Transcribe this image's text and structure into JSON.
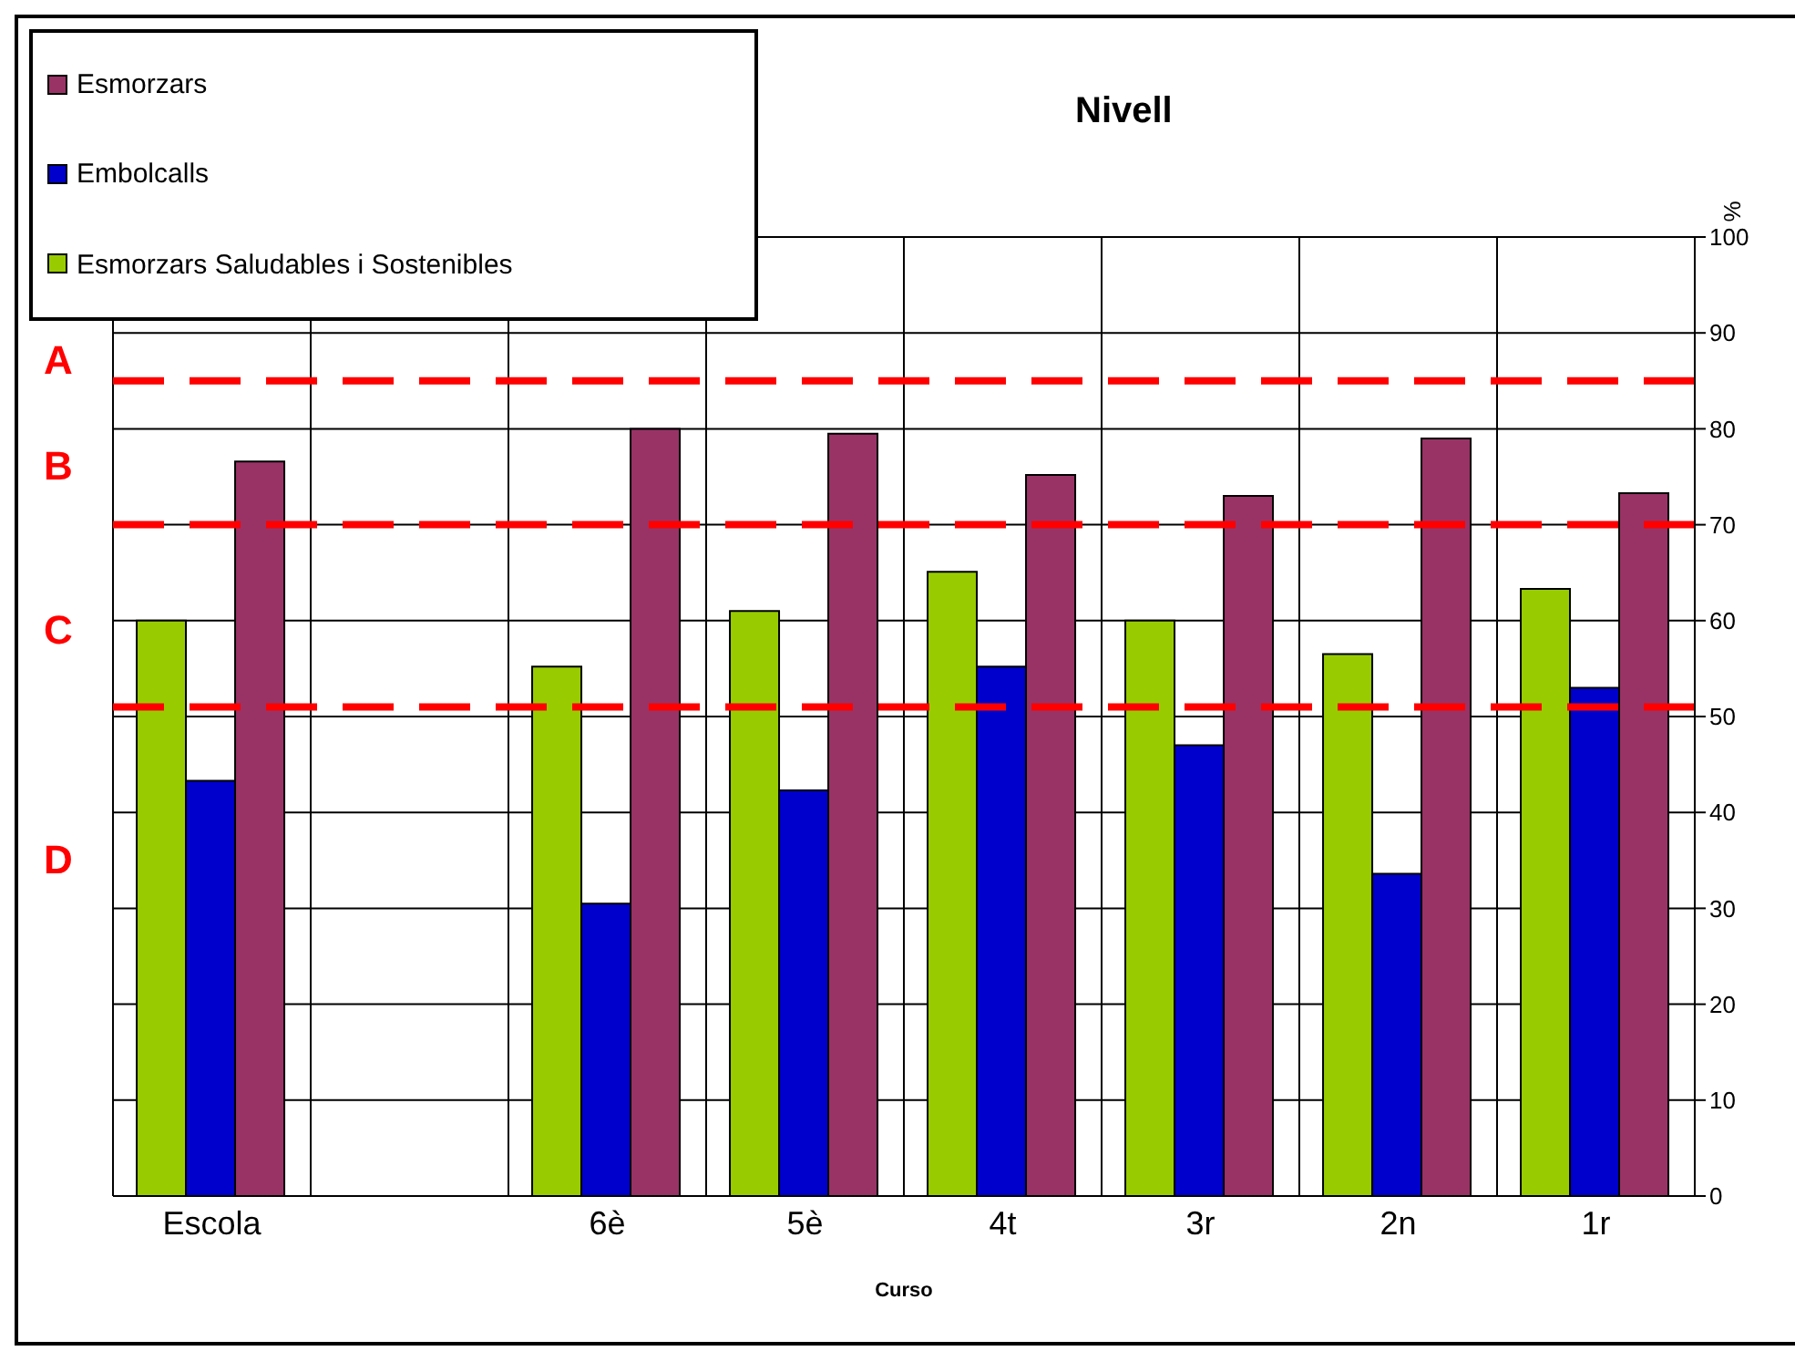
{
  "chart_data": {
    "type": "bar",
    "title": "Nivell",
    "xlabel": "Curso",
    "ylabel": "%",
    "categories": [
      "Escola",
      null,
      "6è",
      "5è",
      "4t",
      "3r",
      "2n",
      "1r"
    ],
    "series": [
      {
        "name": "Esmorzars Saludables i Sostenibles",
        "color": "#99cc00",
        "values": [
          60,
          null,
          55.2,
          61,
          65.1,
          60,
          56.5,
          63.3
        ]
      },
      {
        "name": "Embolcalls",
        "color": "#0000cc",
        "values": [
          43.3,
          null,
          30.5,
          42.3,
          55.2,
          47,
          33.6,
          53
        ]
      },
      {
        "name": "Esmorzars",
        "color": "#993366",
        "values": [
          76.6,
          null,
          80,
          79.5,
          75.2,
          73,
          79,
          73.3
        ]
      }
    ],
    "ylim": [
      0,
      100
    ],
    "yticks": [
      0,
      10,
      20,
      30,
      40,
      50,
      60,
      70,
      80,
      90,
      100
    ],
    "grid": true,
    "legend": "top left",
    "ref_lines": [
      {
        "axis": "y",
        "value": 85,
        "color": "#ff0000",
        "line_style": "dashed"
      },
      {
        "axis": "y",
        "value": 70,
        "color": "#ff0000",
        "line_style": "dashed"
      },
      {
        "axis": "y",
        "value": 51,
        "color": "#ff0000",
        "line_style": "dashed"
      }
    ],
    "annotations": [
      "A",
      "B",
      "C",
      "D"
    ]
  }
}
